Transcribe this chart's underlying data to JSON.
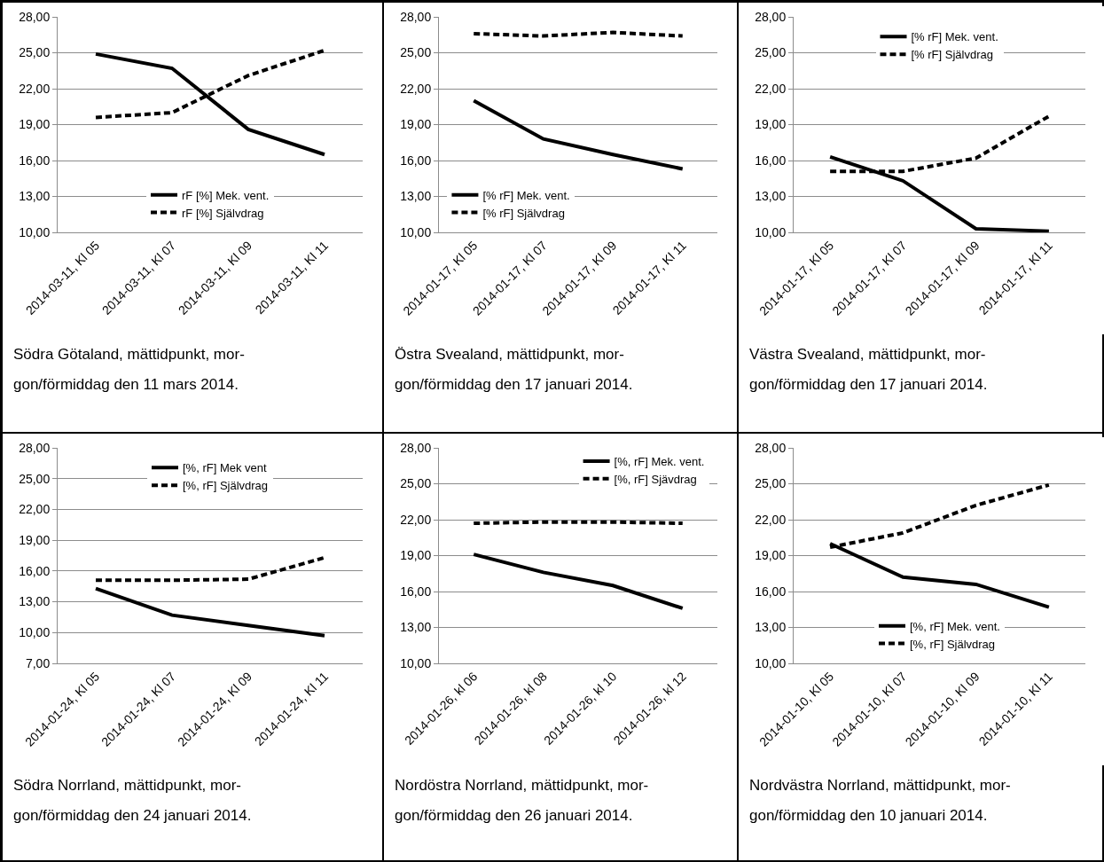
{
  "chart_data": [
    {
      "type": "line",
      "categories": [
        "2014-03-11, Kl 05",
        "2014-03-11, Kl 07",
        "2014-03-11, Kl 09",
        "2014-03-11, Kl 11"
      ],
      "series": [
        {
          "name": "rF [%] Mek. vent.",
          "color": "#000000",
          "line_style": "solid",
          "values": [
            24.9,
            23.7,
            18.6,
            16.5
          ]
        },
        {
          "name": "rF [%] Självdrag",
          "color": "#000000",
          "line_style": "dashed",
          "values": [
            19.6,
            20.0,
            23.1,
            25.2
          ]
        }
      ],
      "ylim": [
        10,
        28
      ],
      "yticks": [
        {
          "value": 10,
          "label": "10,00"
        },
        {
          "value": 13,
          "label": "13,00"
        },
        {
          "value": 16,
          "label": "16,00"
        },
        {
          "value": 19,
          "label": "19,00"
        },
        {
          "value": 22,
          "label": "22,00"
        },
        {
          "value": 25,
          "label": "25,00"
        },
        {
          "value": 28,
          "label": "28,00"
        }
      ],
      "grid": "y",
      "legend": "bottom",
      "annotations": [
        "Södra Götaland, mättidpunkt, mor-gon/förmiddag den 11 mars 2014."
      ]
    },
    {
      "type": "line",
      "categories": [
        "2014-01-17, Kl 05",
        "2014-01-17, Kl 07",
        "2014-01-17, Kl 09",
        "2014-01-17, Kl 11"
      ],
      "series": [
        {
          "name": "[% rF] Mek. vent.",
          "color": "#000000",
          "line_style": "solid",
          "values": [
            21.0,
            17.8,
            16.5,
            15.3
          ]
        },
        {
          "name": "[% rF] Självdrag",
          "color": "#000000",
          "line_style": "dashed",
          "values": [
            26.6,
            26.4,
            26.7,
            26.4
          ]
        }
      ],
      "ylim": [
        10,
        28
      ],
      "yticks": [
        {
          "value": 10,
          "label": "10,00"
        },
        {
          "value": 13,
          "label": "13,00"
        },
        {
          "value": 16,
          "label": "16,00"
        },
        {
          "value": 19,
          "label": "19,00"
        },
        {
          "value": 22,
          "label": "22,00"
        },
        {
          "value": 25,
          "label": "25,00"
        },
        {
          "value": 28,
          "label": "28,00"
        }
      ],
      "grid": "y",
      "legend": "bottom left",
      "annotations": [
        "Östra Svealand, mättidpunkt, mor-gon/förmiddag den 17 januari 2014."
      ]
    },
    {
      "type": "line",
      "categories": [
        "2014-01-17, Kl 05",
        "2014-01-17, Kl 07",
        "2014-01-17, Kl 09",
        "2014-01-17, Kl 11"
      ],
      "series": [
        {
          "name": "[% rF] Mek. vent.",
          "color": "#000000",
          "line_style": "solid",
          "values": [
            16.3,
            14.3,
            10.3,
            10.1
          ]
        },
        {
          "name": "[% rF] Självdrag",
          "color": "#000000",
          "line_style": "dashed",
          "values": [
            15.1,
            15.1,
            16.2,
            19.7
          ]
        }
      ],
      "ylim": [
        10,
        28
      ],
      "yticks": [
        {
          "value": 10,
          "label": "10,00"
        },
        {
          "value": 13,
          "label": "13,00"
        },
        {
          "value": 16,
          "label": "16,00"
        },
        {
          "value": 19,
          "label": "19,00"
        },
        {
          "value": 22,
          "label": "22,00"
        },
        {
          "value": 25,
          "label": "25,00"
        },
        {
          "value": 28,
          "label": "28,00"
        }
      ],
      "grid": "y",
      "legend": "top",
      "annotations": [
        "Västra Svealand, mättidpunkt, mor-gon/förmiddag den 17 januari 2014."
      ]
    },
    {
      "type": "line",
      "categories": [
        "2014-01-24, Kl 05",
        "2014-01-24, Kl 07",
        "2014-01-24, Kl 09",
        "2014-01-24, Kl 11"
      ],
      "series": [
        {
          "name": "[%, rF] Mek vent",
          "color": "#000000",
          "line_style": "solid",
          "values": [
            14.3,
            11.7,
            10.7,
            9.7
          ]
        },
        {
          "name": "[%, rF] Självdrag",
          "color": "#000000",
          "line_style": "dashed",
          "values": [
            15.1,
            15.1,
            15.2,
            17.3
          ]
        }
      ],
      "ylim": [
        7,
        28
      ],
      "yticks": [
        {
          "value": 7,
          "label": "7,00"
        },
        {
          "value": 10,
          "label": "10,00"
        },
        {
          "value": 13,
          "label": "13,00"
        },
        {
          "value": 16,
          "label": "16,00"
        },
        {
          "value": 19,
          "label": "19,00"
        },
        {
          "value": 22,
          "label": "22,00"
        },
        {
          "value": 25,
          "label": "25,00"
        },
        {
          "value": 28,
          "label": "28,00"
        }
      ],
      "grid": "y",
      "legend": "top",
      "annotations": [
        "Södra Norrland, mättidpunkt, mor-gon/förmiddag den 24 januari 2014."
      ]
    },
    {
      "type": "line",
      "categories": [
        "2014-01-26, kl 06",
        "2014-01-26, kl 08",
        "2014-01-26, kl 10",
        "2014-01-26, kl 12"
      ],
      "series": [
        {
          "name": "[%, rF] Mek. vent.",
          "color": "#000000",
          "line_style": "solid",
          "values": [
            19.1,
            17.6,
            16.5,
            14.6
          ]
        },
        {
          "name": "[%, rF] Sjävdrag",
          "color": "#000000",
          "line_style": "dashed",
          "values": [
            21.7,
            21.8,
            21.8,
            21.7
          ]
        }
      ],
      "ylim": [
        10,
        28
      ],
      "yticks": [
        {
          "value": 10,
          "label": "10,00"
        },
        {
          "value": 13,
          "label": "13,00"
        },
        {
          "value": 16,
          "label": "16,00"
        },
        {
          "value": 19,
          "label": "19,00"
        },
        {
          "value": 22,
          "label": "22,00"
        },
        {
          "value": 25,
          "label": "25,00"
        },
        {
          "value": 28,
          "label": "28,00"
        }
      ],
      "grid": "y",
      "legend": "top right",
      "annotations": [
        "Nordöstra Norrland, mättidpunkt, mor-gon/förmiddag den 26 januari 2014."
      ]
    },
    {
      "type": "line",
      "categories": [
        "2014-01-10, Kl 05",
        "2014-01-10, Kl 07",
        "2014-01-10, Kl 09",
        "2014-01-10, Kl 11"
      ],
      "series": [
        {
          "name": "[%, rF] Mek. vent.",
          "color": "#000000",
          "line_style": "solid",
          "values": [
            20.0,
            17.2,
            16.6,
            14.7
          ]
        },
        {
          "name": "[%, rF] Självdrag",
          "color": "#000000",
          "line_style": "dashed",
          "values": [
            19.7,
            20.9,
            23.2,
            24.9
          ]
        }
      ],
      "ylim": [
        10,
        28
      ],
      "yticks": [
        {
          "value": 10,
          "label": "10,00"
        },
        {
          "value": 13,
          "label": "13,00"
        },
        {
          "value": 16,
          "label": "16,00"
        },
        {
          "value": 19,
          "label": "19,00"
        },
        {
          "value": 22,
          "label": "22,00"
        },
        {
          "value": 25,
          "label": "25,00"
        },
        {
          "value": 28,
          "label": "28,00"
        }
      ],
      "grid": "y",
      "legend": "bottom",
      "annotations": [
        "Nordvästra Norrland, mättidpunkt, mor-gon/förmiddag den 10 januari 2014."
      ]
    }
  ]
}
